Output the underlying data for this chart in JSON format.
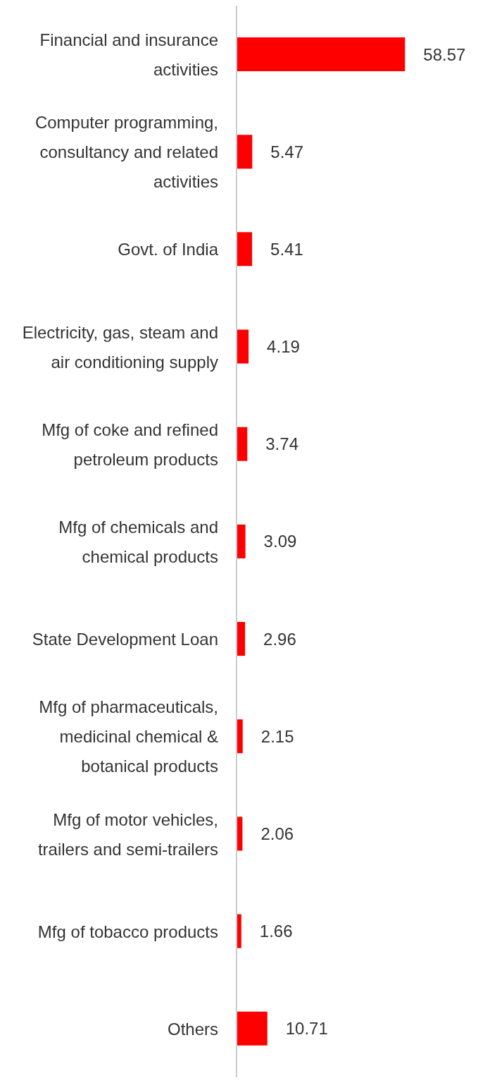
{
  "chart_data": {
    "type": "bar",
    "orientation": "horizontal",
    "categories": [
      "Financial and insurance activities",
      "Computer programming, consultancy and related activities",
      "Govt. of India",
      "Electricity, gas, steam and air conditioning supply",
      "Mfg of coke and refined petroleum products",
      "Mfg of chemicals and chemical products",
      "State Development Loan",
      "Mfg of pharmaceuticals, medicinal chemical & botanical products",
      "Mfg of motor vehicles, trailers and semi-trailers",
      "Mfg of tobacco products",
      "Others"
    ],
    "values": [
      58.57,
      5.47,
      5.41,
      4.19,
      3.74,
      3.09,
      2.96,
      2.15,
      2.06,
      1.66,
      10.71
    ],
    "color": "#ff0000",
    "data_labels": true
  }
}
